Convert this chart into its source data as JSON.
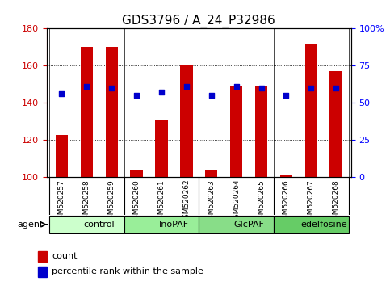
{
  "title": "GDS3796 / A_24_P32986",
  "samples": [
    "GSM520257",
    "GSM520258",
    "GSM520259",
    "GSM520260",
    "GSM520261",
    "GSM520262",
    "GSM520263",
    "GSM520264",
    "GSM520265",
    "GSM520266",
    "GSM520267",
    "GSM520268"
  ],
  "bar_values": [
    123,
    170,
    170,
    104,
    131,
    160,
    104,
    149,
    149,
    101,
    172,
    157
  ],
  "pct_values": [
    145,
    149,
    148,
    144,
    146,
    149,
    144,
    149,
    148,
    144,
    148,
    148
  ],
  "bar_color": "#cc0000",
  "pct_color": "#0000cc",
  "bar_bottom": 100,
  "ylim": [
    100,
    180
  ],
  "yticks": [
    100,
    120,
    140,
    160,
    180
  ],
  "right_yticks": [
    0,
    25,
    50,
    75,
    100
  ],
  "right_ylim": [
    0,
    100
  ],
  "groups": [
    {
      "label": "control",
      "start": 0,
      "end": 3,
      "color": "#ccffcc"
    },
    {
      "label": "InoPAF",
      "start": 3,
      "end": 6,
      "color": "#99ee99"
    },
    {
      "label": "GlcPAF",
      "start": 6,
      "end": 9,
      "color": "#88dd88"
    },
    {
      "label": "edelfosine",
      "start": 9,
      "end": 12,
      "color": "#66cc66"
    }
  ],
  "group_row_color": "#dddddd",
  "sample_row_color": "#cccccc",
  "legend_items": [
    {
      "label": "count",
      "color": "#cc0000"
    },
    {
      "label": "percentile rank within the sample",
      "color": "#0000cc"
    }
  ],
  "agent_label": "agent",
  "xlabel_fontsize": 7,
  "title_fontsize": 11,
  "bar_width": 0.5
}
